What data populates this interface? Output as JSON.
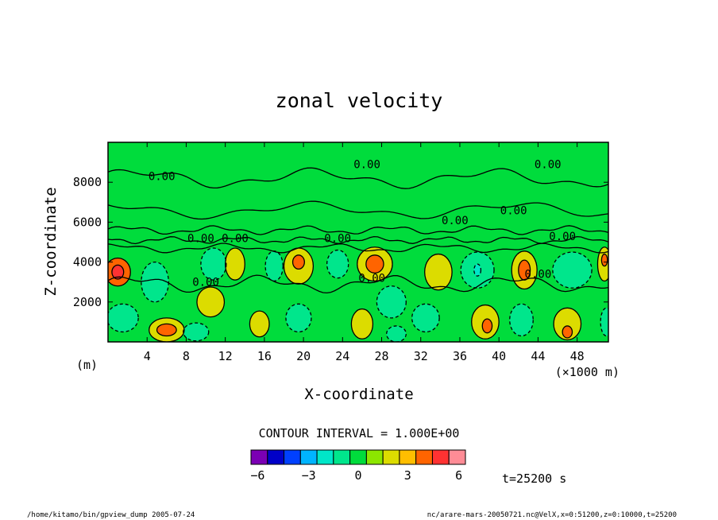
{
  "chart_data": {
    "type": "heatmap",
    "title": "zonal velocity",
    "xlabel": "X-coordinate",
    "ylabel": "Z-coordinate",
    "x_unit": "(×1000 m)",
    "y_unit": "(m)",
    "xlim": [
      0,
      51.2
    ],
    "ylim": [
      0,
      10000
    ],
    "x_ticks": [
      4,
      8,
      12,
      16,
      20,
      24,
      28,
      32,
      36,
      40,
      44,
      48
    ],
    "y_ticks": [
      2000,
      4000,
      6000,
      8000
    ],
    "contour_interval_text": "CONTOUR INTERVAL = 1.000E+00",
    "contour_labels": [
      {
        "text": "0.00",
        "x": 5.5,
        "z": 8100
      },
      {
        "text": "0.00",
        "x": 26.5,
        "z": 8700
      },
      {
        "text": "0.00",
        "x": 45.0,
        "z": 8700
      },
      {
        "text": "0.00",
        "x": 35.5,
        "z": 5900
      },
      {
        "text": "0.00",
        "x": 41.5,
        "z": 6400
      },
      {
        "text": "0.00",
        "x": 46.5,
        "z": 5100
      },
      {
        "text": "0.00",
        "x": 9.5,
        "z": 5000
      },
      {
        "text": "0.00",
        "x": 13.0,
        "z": 5000
      },
      {
        "text": "0.00",
        "x": 23.5,
        "z": 5000
      },
      {
        "text": "0.00",
        "x": 10.0,
        "z": 2800
      },
      {
        "text": "0.00",
        "x": 27.0,
        "z": 3000
      },
      {
        "text": "0.00",
        "x": 44.0,
        "z": 3200
      }
    ],
    "colorbar": {
      "colors": [
        "#7b00b4",
        "#0000c8",
        "#0040ff",
        "#00b4ff",
        "#00e6c8",
        "#00e68c",
        "#00dc3c",
        "#8ce600",
        "#dcdc00",
        "#ffbe00",
        "#ff6400",
        "#ff3232",
        "#ff8c96"
      ],
      "tick_labels": [
        "−6",
        "−3",
        "0",
        "3",
        "6"
      ],
      "tick_values": [
        -6,
        -3,
        0,
        3,
        6
      ]
    },
    "bands": [
      {
        "x": 1.0,
        "z": 3500,
        "rx": 1.3,
        "rz": 700,
        "v": 4
      },
      {
        "x": 1.0,
        "z": 3500,
        "rx": 0.6,
        "rz": 350,
        "v": 5
      },
      {
        "x": 6.0,
        "z": 600,
        "rx": 1.8,
        "rz": 600,
        "v": 2
      },
      {
        "x": 6.0,
        "z": 600,
        "rx": 1.0,
        "rz": 300,
        "v": 4
      },
      {
        "x": 10.5,
        "z": 2000,
        "rx": 1.4,
        "rz": 750,
        "v": 2
      },
      {
        "x": 15.5,
        "z": 900,
        "rx": 1.0,
        "rz": 650,
        "v": 2
      },
      {
        "x": 13.0,
        "z": 3900,
        "rx": 1.0,
        "rz": 800,
        "v": 2
      },
      {
        "x": 19.5,
        "z": 3800,
        "rx": 1.5,
        "rz": 900,
        "v": 2
      },
      {
        "x": 19.5,
        "z": 4000,
        "rx": 0.6,
        "rz": 350,
        "v": 4
      },
      {
        "x": 27.3,
        "z": 3900,
        "rx": 1.8,
        "rz": 850,
        "v": 2
      },
      {
        "x": 27.3,
        "z": 3900,
        "rx": 0.9,
        "rz": 450,
        "v": 4
      },
      {
        "x": 26.0,
        "z": 900,
        "rx": 1.1,
        "rz": 750,
        "v": 2
      },
      {
        "x": 33.8,
        "z": 3500,
        "rx": 1.4,
        "rz": 900,
        "v": 2
      },
      {
        "x": 38.6,
        "z": 1000,
        "rx": 1.4,
        "rz": 850,
        "v": 2
      },
      {
        "x": 38.8,
        "z": 800,
        "rx": 0.5,
        "rz": 350,
        "v": 4
      },
      {
        "x": 42.6,
        "z": 3600,
        "rx": 1.3,
        "rz": 950,
        "v": 2
      },
      {
        "x": 42.6,
        "z": 3600,
        "rx": 0.6,
        "rz": 500,
        "v": 4
      },
      {
        "x": 47.0,
        "z": 900,
        "rx": 1.4,
        "rz": 800,
        "v": 2
      },
      {
        "x": 47.0,
        "z": 500,
        "rx": 0.5,
        "rz": 300,
        "v": 4
      },
      {
        "x": 50.8,
        "z": 3900,
        "rx": 0.7,
        "rz": 850,
        "v": 2
      },
      {
        "x": 50.8,
        "z": 4100,
        "rx": 0.3,
        "rz": 300,
        "v": 4
      },
      {
        "x": 4.8,
        "z": 3000,
        "rx": 1.4,
        "rz": 1000,
        "v": -1
      },
      {
        "x": 10.8,
        "z": 3900,
        "rx": 1.3,
        "rz": 800,
        "v": -1
      },
      {
        "x": 17.0,
        "z": 3800,
        "rx": 0.9,
        "rz": 750,
        "v": -1
      },
      {
        "x": 23.5,
        "z": 3900,
        "rx": 1.1,
        "rz": 700,
        "v": -1
      },
      {
        "x": 29.0,
        "z": 2000,
        "rx": 1.5,
        "rz": 800,
        "v": -1
      },
      {
        "x": 37.8,
        "z": 3600,
        "rx": 1.7,
        "rz": 900,
        "v": -1
      },
      {
        "x": 37.8,
        "z": 3600,
        "rx": 0.35,
        "rz": 300,
        "v": -2
      },
      {
        "x": 47.5,
        "z": 3600,
        "rx": 2.0,
        "rz": 900,
        "v": -1
      },
      {
        "x": 1.5,
        "z": 1200,
        "rx": 1.6,
        "rz": 700,
        "v": -1
      },
      {
        "x": 19.5,
        "z": 1200,
        "rx": 1.3,
        "rz": 700,
        "v": -1
      },
      {
        "x": 32.5,
        "z": 1200,
        "rx": 1.4,
        "rz": 700,
        "v": -1
      },
      {
        "x": 42.3,
        "z": 1100,
        "rx": 1.2,
        "rz": 800,
        "v": -1
      },
      {
        "x": 9.0,
        "z": 500,
        "rx": 1.3,
        "rz": 450,
        "v": -1
      },
      {
        "x": 29.5,
        "z": 400,
        "rx": 1.0,
        "rz": 400,
        "v": -1
      },
      {
        "x": 51.0,
        "z": 1000,
        "rx": 0.6,
        "rz": 700,
        "v": -1
      }
    ]
  },
  "time_label": "t=25200 s",
  "footer_left": "/home/kitamo/bin/gpview_dump  2005-07-24",
  "footer_right": "nc/arare-mars-20050721.nc@VelX,x=0:51200,z=0:10000,t=25200"
}
